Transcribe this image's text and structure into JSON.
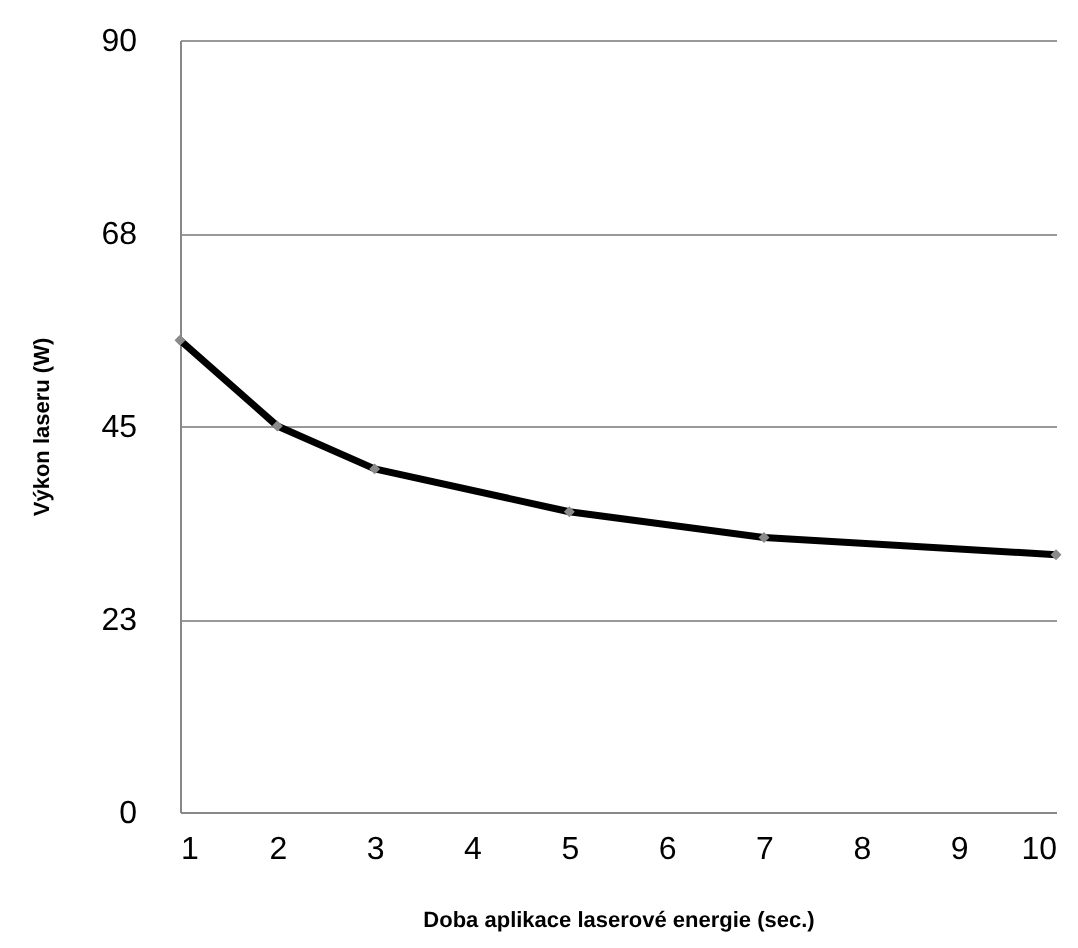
{
  "chart_data": {
    "type": "line",
    "xlabel": "Doba aplikace laserové energie (sec.)",
    "ylabel": "Výkon laseru (W)",
    "x": [
      1,
      2,
      3,
      5,
      7,
      10
    ],
    "series": [
      {
        "color": "#000000",
        "values": [
          55,
          45,
          40,
          35,
          32,
          30
        ]
      }
    ],
    "xlim": [
      1,
      10
    ],
    "xticks": [
      1,
      2,
      3,
      4,
      5,
      6,
      7,
      8,
      9,
      10
    ],
    "ylim": [
      0,
      90
    ],
    "yticks": [
      0,
      {
        "value": 22.5,
        "label": "23"
      },
      45,
      {
        "value": 67.5,
        "label": "68"
      },
      90
    ],
    "grid": "y",
    "marker": "diamond",
    "line_style": "solid"
  }
}
